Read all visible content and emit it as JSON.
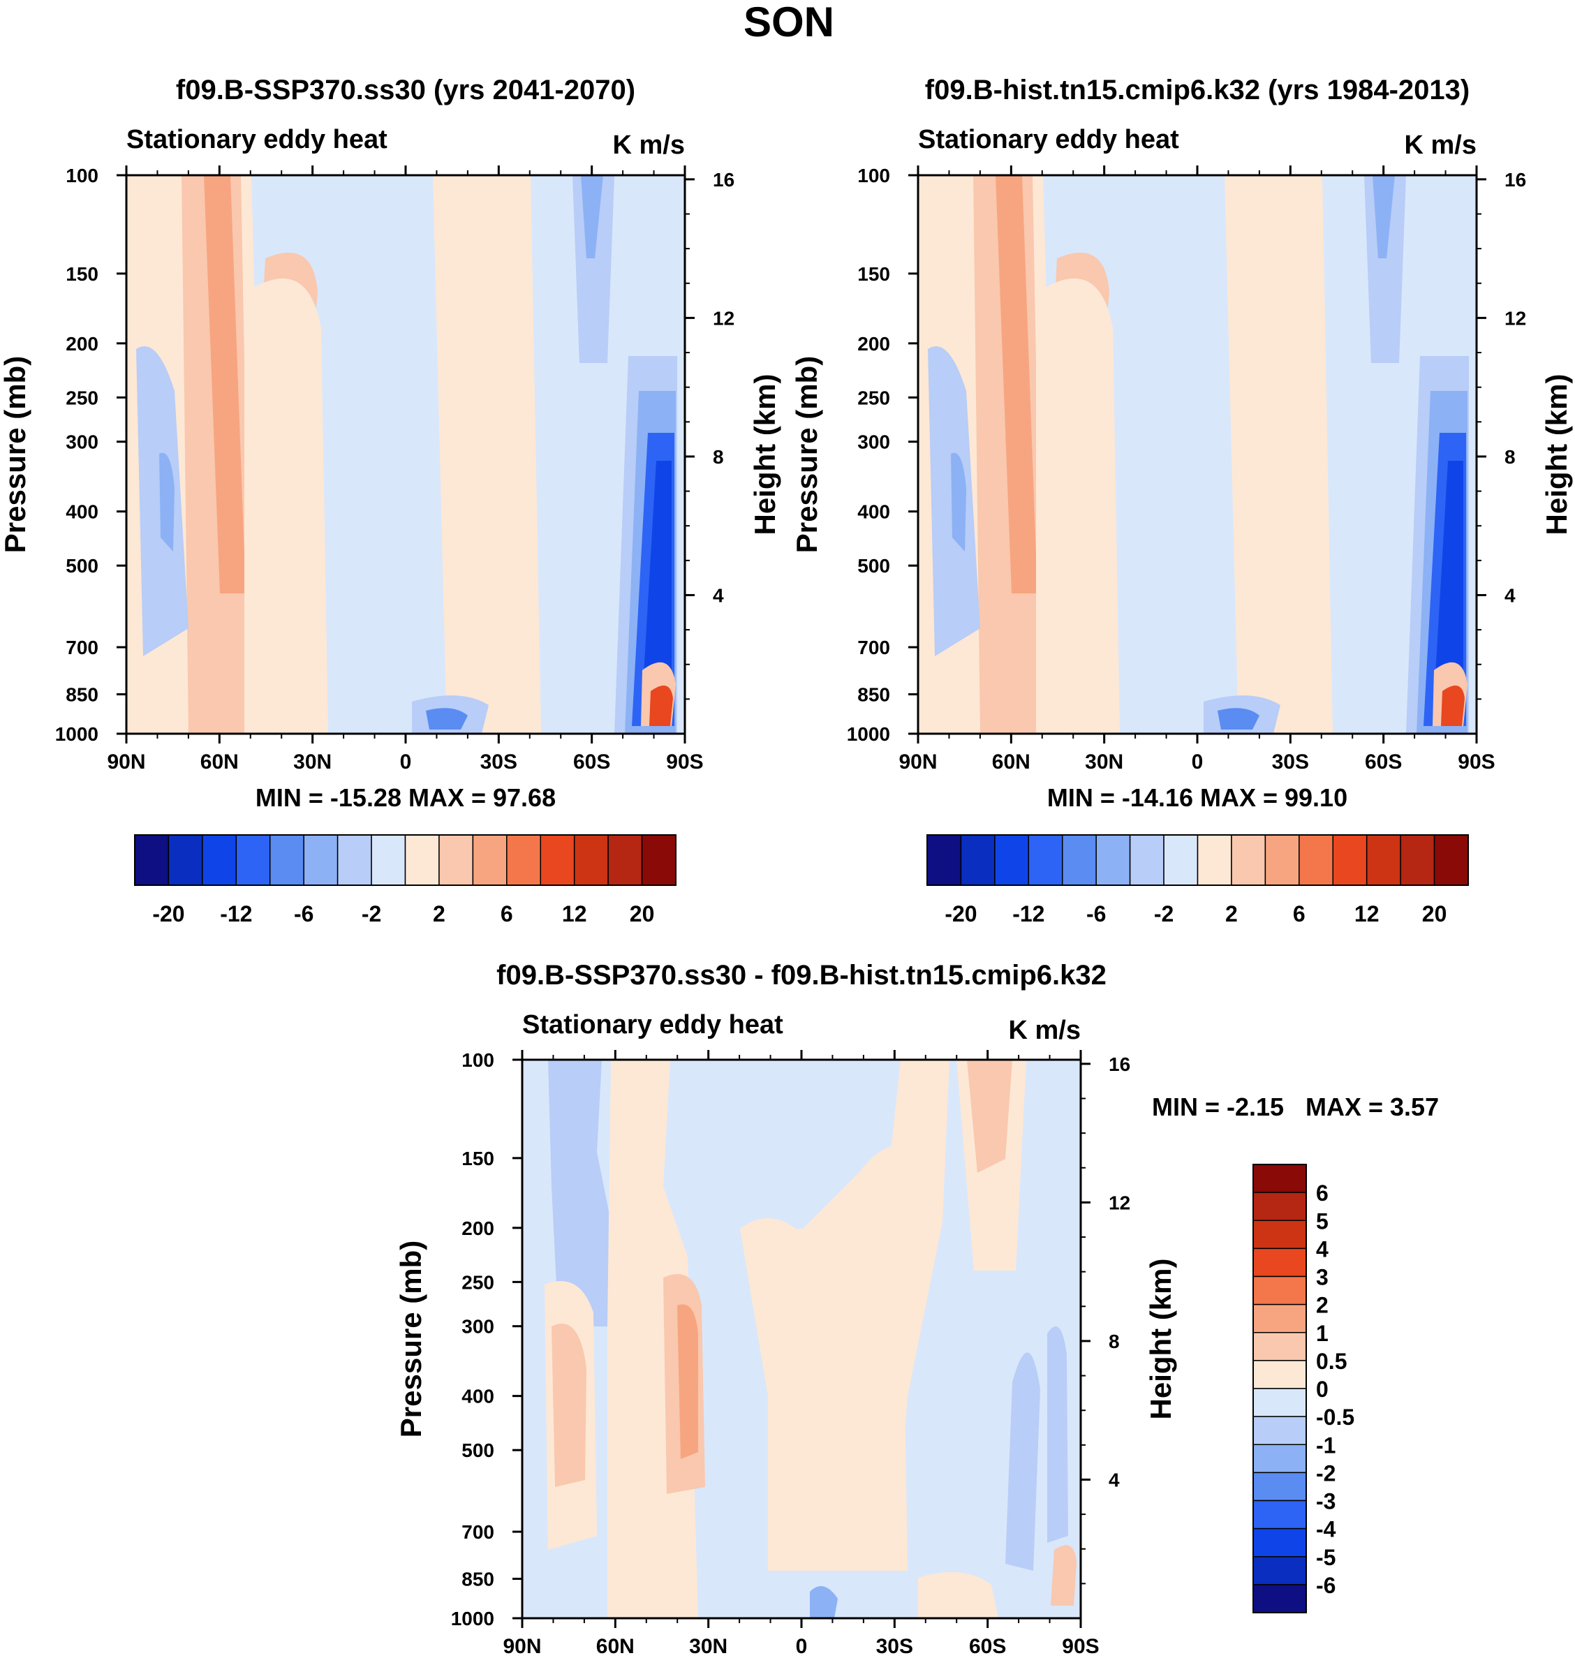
{
  "figure_title": "SON",
  "chart_data": [
    {
      "type": "contour",
      "title": "f09.B-SSP370.ss30 (yrs 2041-2070)",
      "subtitle_left": "Stationary eddy heat",
      "subtitle_right": "K m/s",
      "xlabel": "",
      "ylabel": "Pressure (mb)",
      "ylabel_right": "Height (km)",
      "x_ticks": [
        "90N",
        "60N",
        "30N",
        "0",
        "30S",
        "60S",
        "90S"
      ],
      "y_ticks": [
        "100",
        "150",
        "200",
        "250",
        "300",
        "400",
        "500",
        "700",
        "850",
        "1000"
      ],
      "y_ticks_right": [
        "16",
        "12",
        "8",
        "4"
      ],
      "stats": "MIN = -15.28  MAX =  97.68",
      "colorbar_labels": [
        "-20",
        "-12",
        "-6",
        "-2",
        "2",
        "6",
        "12",
        "20"
      ],
      "min": -15.28,
      "max": 97.68
    },
    {
      "type": "contour",
      "title": "f09.B-hist.tn15.cmip6.k32 (yrs 1984-2013)",
      "subtitle_left": "Stationary eddy heat",
      "subtitle_right": "K m/s",
      "xlabel": "",
      "ylabel": "Pressure (mb)",
      "ylabel_right": "Height (km)",
      "x_ticks": [
        "90N",
        "60N",
        "30N",
        "0",
        "30S",
        "60S",
        "90S"
      ],
      "y_ticks": [
        "100",
        "150",
        "200",
        "250",
        "300",
        "400",
        "500",
        "700",
        "850",
        "1000"
      ],
      "y_ticks_right": [
        "16",
        "12",
        "8",
        "4"
      ],
      "stats": "MIN = -14.16  MAX =  99.10",
      "colorbar_labels": [
        "-20",
        "-12",
        "-6",
        "-2",
        "2",
        "6",
        "12",
        "20"
      ],
      "min": -14.16,
      "max": 99.1
    },
    {
      "type": "contour",
      "title": "f09.B-SSP370.ss30 - f09.B-hist.tn15.cmip6.k32",
      "subtitle_left": "Stationary eddy heat",
      "subtitle_right": "K m/s",
      "xlabel": "",
      "ylabel": "Pressure (mb)",
      "ylabel_right": "Height (km)",
      "x_ticks": [
        "90N",
        "60N",
        "30N",
        "0",
        "30S",
        "60S",
        "90S"
      ],
      "y_ticks": [
        "100",
        "150",
        "200",
        "250",
        "300",
        "400",
        "500",
        "700",
        "850",
        "1000"
      ],
      "y_ticks_right": [
        "16",
        "12",
        "8",
        "4"
      ],
      "stats_min": "MIN =  -2.15",
      "stats_max": "MAX =   3.57",
      "colorbar_labels": [
        "6",
        "5",
        "4",
        "3",
        "2",
        "1",
        "0.5",
        "0",
        "-0.5",
        "-1",
        "-2",
        "-3",
        "-4",
        "-5",
        "-6"
      ],
      "min": -2.15,
      "max": 3.57
    }
  ],
  "colors": {
    "palette": [
      "#0d0f82",
      "#0a2ebf",
      "#0f45e8",
      "#2d64f5",
      "#5a8cf2",
      "#8cb1f5",
      "#b8cdf7",
      "#d9e7fb",
      "#fde8d5",
      "#f9c8ae",
      "#f7a580",
      "#f4774b",
      "#e8471f",
      "#cc3413",
      "#b52613",
      "#8a0a08"
    ]
  }
}
